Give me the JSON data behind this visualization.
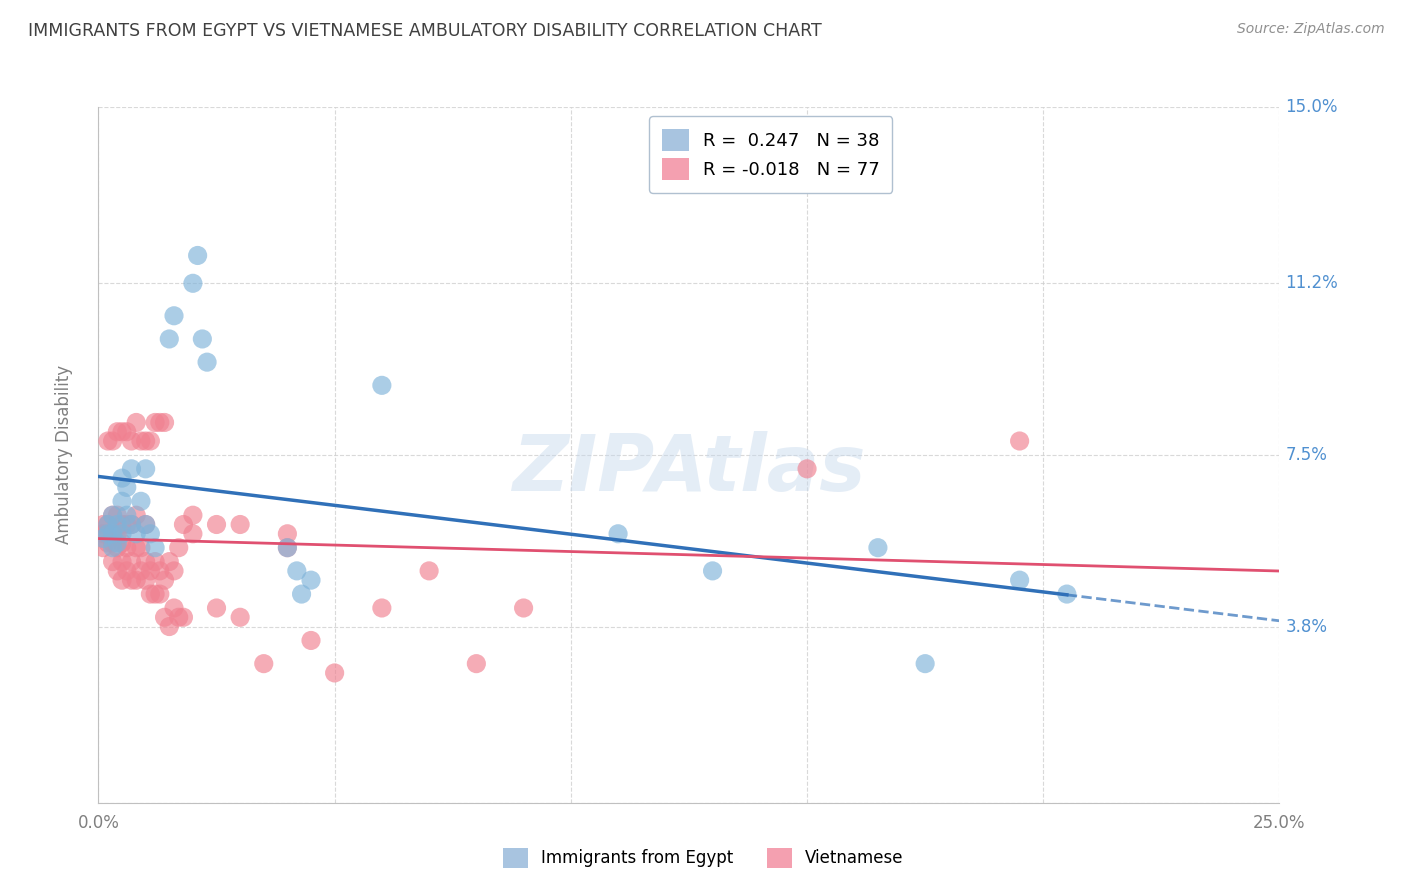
{
  "title": "IMMIGRANTS FROM EGYPT VS VIETNAMESE AMBULATORY DISABILITY CORRELATION CHART",
  "source": "Source: ZipAtlas.com",
  "ylabel": "Ambulatory Disability",
  "xlim": [
    0.0,
    0.25
  ],
  "ylim": [
    0.0,
    0.15
  ],
  "xticks": [
    0.0,
    0.05,
    0.1,
    0.15,
    0.2,
    0.25
  ],
  "xticklabels": [
    "0.0%",
    "",
    "",
    "",
    "",
    "25.0%"
  ],
  "yticks": [
    0.0,
    0.038,
    0.075,
    0.112,
    0.15
  ],
  "yticklabels": [
    "",
    "3.8%",
    "7.5%",
    "11.2%",
    "15.0%"
  ],
  "egypt_color": "#7fb3d9",
  "vietnam_color": "#f08090",
  "egypt_line_color": "#3070b8",
  "vietnam_line_color": "#e05070",
  "background_color": "#ffffff",
  "grid_color": "#d0d0d0",
  "egypt_points": [
    [
      0.001,
      0.057
    ],
    [
      0.002,
      0.058
    ],
    [
      0.002,
      0.06
    ],
    [
      0.003,
      0.055
    ],
    [
      0.003,
      0.058
    ],
    [
      0.003,
      0.062
    ],
    [
      0.004,
      0.056
    ],
    [
      0.004,
      0.06
    ],
    [
      0.005,
      0.058
    ],
    [
      0.005,
      0.065
    ],
    [
      0.005,
      0.07
    ],
    [
      0.006,
      0.062
    ],
    [
      0.006,
      0.068
    ],
    [
      0.007,
      0.06
    ],
    [
      0.007,
      0.072
    ],
    [
      0.008,
      0.058
    ],
    [
      0.009,
      0.065
    ],
    [
      0.01,
      0.06
    ],
    [
      0.01,
      0.072
    ],
    [
      0.011,
      0.058
    ],
    [
      0.012,
      0.055
    ],
    [
      0.015,
      0.1
    ],
    [
      0.016,
      0.105
    ],
    [
      0.02,
      0.112
    ],
    [
      0.021,
      0.118
    ],
    [
      0.022,
      0.1
    ],
    [
      0.023,
      0.095
    ],
    [
      0.04,
      0.055
    ],
    [
      0.042,
      0.05
    ],
    [
      0.043,
      0.045
    ],
    [
      0.045,
      0.048
    ],
    [
      0.06,
      0.09
    ],
    [
      0.11,
      0.058
    ],
    [
      0.13,
      0.05
    ],
    [
      0.165,
      0.055
    ],
    [
      0.175,
      0.03
    ],
    [
      0.195,
      0.048
    ],
    [
      0.205,
      0.045
    ]
  ],
  "vietnam_points": [
    [
      0.001,
      0.058
    ],
    [
      0.001,
      0.06
    ],
    [
      0.001,
      0.055
    ],
    [
      0.002,
      0.056
    ],
    [
      0.002,
      0.058
    ],
    [
      0.002,
      0.06
    ],
    [
      0.002,
      0.078
    ],
    [
      0.003,
      0.052
    ],
    [
      0.003,
      0.056
    ],
    [
      0.003,
      0.058
    ],
    [
      0.003,
      0.062
    ],
    [
      0.003,
      0.078
    ],
    [
      0.004,
      0.05
    ],
    [
      0.004,
      0.055
    ],
    [
      0.004,
      0.058
    ],
    [
      0.004,
      0.062
    ],
    [
      0.004,
      0.08
    ],
    [
      0.005,
      0.048
    ],
    [
      0.005,
      0.052
    ],
    [
      0.005,
      0.056
    ],
    [
      0.005,
      0.06
    ],
    [
      0.005,
      0.08
    ],
    [
      0.006,
      0.05
    ],
    [
      0.006,
      0.055
    ],
    [
      0.006,
      0.06
    ],
    [
      0.006,
      0.08
    ],
    [
      0.007,
      0.048
    ],
    [
      0.007,
      0.052
    ],
    [
      0.007,
      0.06
    ],
    [
      0.007,
      0.078
    ],
    [
      0.008,
      0.048
    ],
    [
      0.008,
      0.055
    ],
    [
      0.008,
      0.062
    ],
    [
      0.008,
      0.082
    ],
    [
      0.009,
      0.05
    ],
    [
      0.009,
      0.055
    ],
    [
      0.009,
      0.078
    ],
    [
      0.01,
      0.048
    ],
    [
      0.01,
      0.052
    ],
    [
      0.01,
      0.06
    ],
    [
      0.01,
      0.078
    ],
    [
      0.011,
      0.045
    ],
    [
      0.011,
      0.05
    ],
    [
      0.011,
      0.078
    ],
    [
      0.012,
      0.045
    ],
    [
      0.012,
      0.052
    ],
    [
      0.012,
      0.082
    ],
    [
      0.013,
      0.045
    ],
    [
      0.013,
      0.05
    ],
    [
      0.013,
      0.082
    ],
    [
      0.014,
      0.04
    ],
    [
      0.014,
      0.048
    ],
    [
      0.014,
      0.082
    ],
    [
      0.015,
      0.038
    ],
    [
      0.015,
      0.052
    ],
    [
      0.016,
      0.042
    ],
    [
      0.016,
      0.05
    ],
    [
      0.017,
      0.04
    ],
    [
      0.017,
      0.055
    ],
    [
      0.018,
      0.04
    ],
    [
      0.018,
      0.06
    ],
    [
      0.02,
      0.058
    ],
    [
      0.02,
      0.062
    ],
    [
      0.025,
      0.042
    ],
    [
      0.025,
      0.06
    ],
    [
      0.03,
      0.04
    ],
    [
      0.03,
      0.06
    ],
    [
      0.035,
      0.03
    ],
    [
      0.04,
      0.055
    ],
    [
      0.04,
      0.058
    ],
    [
      0.045,
      0.035
    ],
    [
      0.05,
      0.028
    ],
    [
      0.06,
      0.042
    ],
    [
      0.07,
      0.05
    ],
    [
      0.08,
      0.03
    ],
    [
      0.09,
      0.042
    ],
    [
      0.15,
      0.072
    ],
    [
      0.195,
      0.078
    ]
  ]
}
